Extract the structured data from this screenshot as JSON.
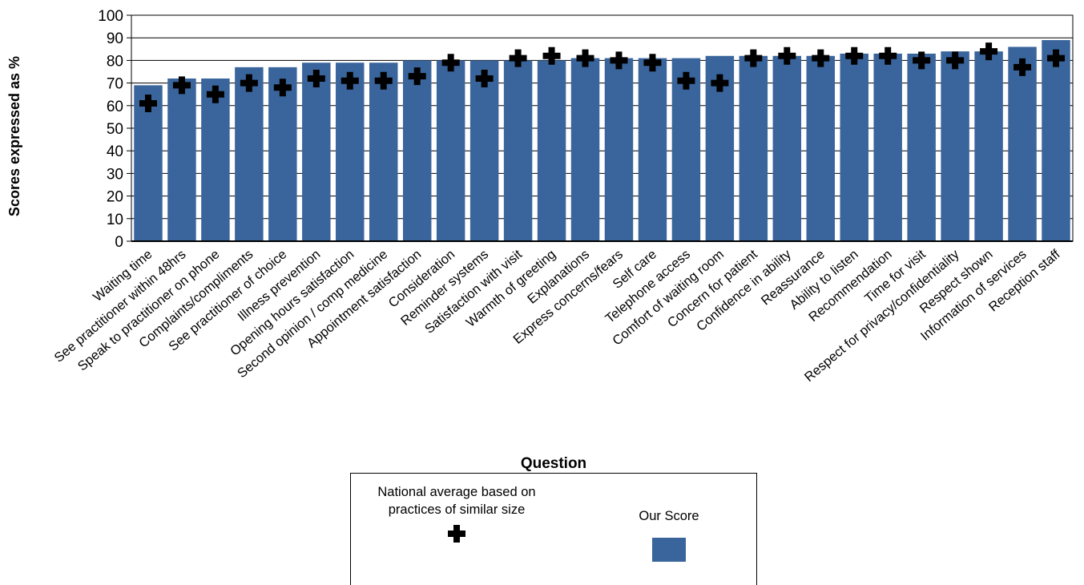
{
  "chart_data": {
    "type": "bar",
    "title": "",
    "xlabel": "Question",
    "ylabel": "Scores expressed as %",
    "ylim": [
      0,
      100
    ],
    "yticks": [
      0,
      10,
      20,
      30,
      40,
      50,
      60,
      70,
      80,
      90,
      100
    ],
    "grid": "horizontal",
    "legend_position": "bottom",
    "categories": [
      "Waiting time",
      "See practitioner within 48hrs",
      "Speak to practitioner on phone",
      "Complaints/compliments",
      "See practitioner of choice",
      "Illness prevention",
      "Opening hours satisfaction",
      "Second opinion / comp medicine",
      "Appointment satisfaction",
      "Consideration",
      "Reminder systems",
      "Satisfaction with visit",
      "Warmth of greeting",
      "Explanations",
      "Express concerns/fears",
      "Self care",
      "Telephone access",
      "Comfort of waiting room",
      "Concern for patient",
      "Confidence in ability",
      "Reassurance",
      "Ability to listen",
      "Recommendation",
      "Time for visit",
      "Respect for privacy/confidentiality",
      "Respect shown",
      "Information of services",
      "Reception staff"
    ],
    "series": [
      {
        "name": "Our Score",
        "kind": "bar",
        "color": "#3a659c",
        "values": [
          69,
          72,
          72,
          77,
          77,
          79,
          79,
          79,
          80,
          80,
          80,
          80,
          80,
          81,
          81,
          81,
          81,
          82,
          82,
          82,
          82,
          83,
          83,
          83,
          84,
          84,
          86,
          89
        ]
      },
      {
        "name": "National average based on practices of similar size",
        "kind": "marker",
        "marker": "cross",
        "color": "#000000",
        "values": [
          61,
          69,
          65,
          70,
          68,
          72,
          71,
          71,
          73,
          79,
          72,
          81,
          82,
          81,
          80,
          79,
          71,
          70,
          81,
          82,
          81,
          82,
          82,
          80,
          80,
          84,
          77,
          81
        ]
      }
    ]
  },
  "legend": {
    "national_label": "National average based on practices of similar size",
    "ours_label": "Our Score"
  }
}
